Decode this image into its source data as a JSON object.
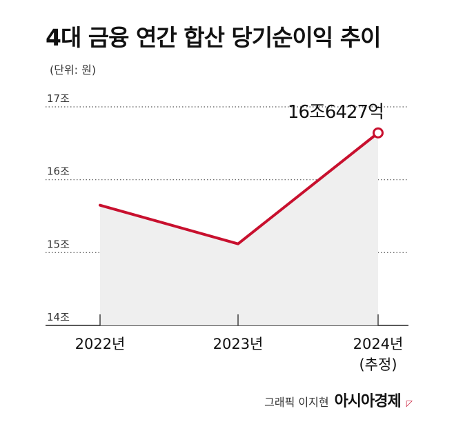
{
  "header": {
    "title": "4대 금융 연간 합산 당기순이익 추이",
    "unit": "(단위: 원)"
  },
  "footer": {
    "credit": "그래픽 이지현",
    "brand": "아시아경제"
  },
  "colors": {
    "line": "#c8102e",
    "area": "#efefef",
    "grid": "#555555"
  },
  "chart_data": {
    "type": "area",
    "categories": [
      "2022년",
      "2023년",
      "2024년"
    ],
    "category_notes": [
      "",
      "",
      "(추정)"
    ],
    "series": [
      {
        "values": [
          15.65,
          15.12,
          16.6427
        ]
      }
    ],
    "y_ticks": [
      {
        "value": 17,
        "label": "17조"
      },
      {
        "value": 16,
        "label": "16조"
      },
      {
        "value": 15,
        "label": "15조"
      },
      {
        "value": 14,
        "label": "14조"
      }
    ],
    "ylim": [
      14,
      17
    ],
    "annotation": {
      "index": 2,
      "label": "16조6427억"
    },
    "grid": true
  }
}
